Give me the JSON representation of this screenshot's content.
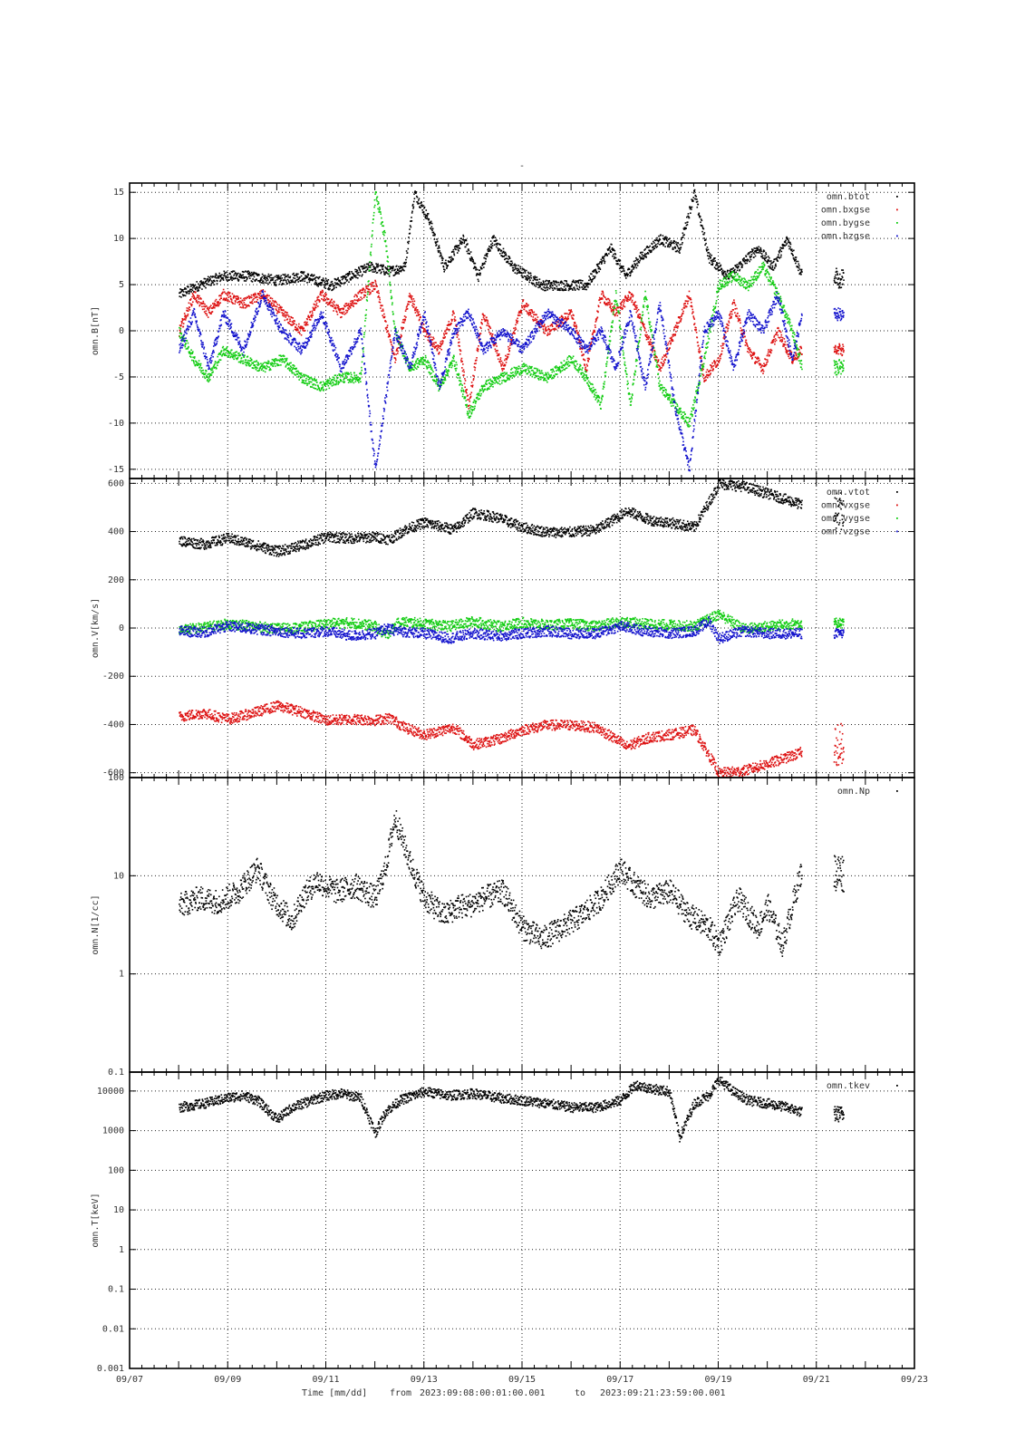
{
  "figure": {
    "top_mark": "-",
    "footer": {
      "time_label": "Time [mm/dd]",
      "from_label": "from",
      "from_value": "2023:09:08:00:01:00.001",
      "to_label": "to",
      "to_value": "2023:09:21:23:59:00.001"
    }
  },
  "chart_data": [
    {
      "type": "scatter",
      "ylabel": "omn.B[nT]",
      "ylim": [
        -16,
        16
      ],
      "yscale": "linear",
      "yticks": [
        -15,
        -10,
        -5,
        0,
        5,
        10,
        15
      ],
      "ytick_labels": [
        "-15",
        "-10",
        "-5",
        "0",
        "5",
        "10",
        "15"
      ],
      "grid": true,
      "legend_position": "top-right",
      "series": [
        {
          "name": "omn.btot",
          "color": "#000000",
          "t": [
            1.0,
            1.4,
            1.9,
            2.4,
            3.0,
            3.5,
            4.1,
            4.5,
            4.9,
            5.3,
            5.6,
            5.8,
            6.1,
            6.4,
            6.8,
            7.1,
            7.4,
            7.8,
            8.4,
            8.9,
            9.3,
            9.8,
            10.1,
            10.4,
            10.8,
            11.2,
            11.5,
            11.8,
            12.2,
            12.8,
            13.1,
            13.4,
            13.7
          ],
          "v": [
            4,
            5,
            6,
            6,
            5.5,
            6,
            5,
            6,
            7,
            6.5,
            7,
            15,
            12,
            7,
            10,
            6,
            10,
            7,
            5,
            5,
            5,
            9,
            6,
            8,
            10,
            9,
            15,
            8,
            6,
            9,
            7,
            10,
            6
          ]
        },
        {
          "name": "omn.bxgse",
          "color": "#dd1111",
          "t": [
            1.0,
            1.3,
            1.6,
            1.9,
            2.3,
            2.7,
            3.1,
            3.5,
            3.9,
            4.3,
            4.7,
            5.0,
            5.4,
            5.7,
            6.0,
            6.3,
            6.6,
            6.9,
            7.2,
            7.6,
            8.0,
            8.5,
            9.0,
            9.3,
            9.6,
            9.9,
            10.2,
            10.5,
            10.8,
            11.1,
            11.4,
            11.7,
            12.0,
            12.3,
            12.6,
            12.9,
            13.2,
            13.5,
            13.7
          ],
          "v": [
            0,
            4,
            2,
            4,
            3,
            4,
            2,
            0,
            4,
            2,
            4,
            5,
            -3,
            4,
            0,
            -2,
            2,
            -8,
            2,
            -4,
            3,
            0,
            2,
            -4,
            4,
            2,
            4,
            0,
            -4,
            0,
            4,
            -5,
            -3,
            3,
            -2,
            -4,
            0,
            -3,
            -2
          ]
        },
        {
          "name": "omn.bygse",
          "color": "#11cc11",
          "t": [
            1.0,
            1.3,
            1.6,
            1.9,
            2.3,
            2.7,
            3.1,
            3.5,
            3.9,
            4.3,
            4.7,
            5.0,
            5.2,
            5.4,
            5.7,
            6.0,
            6.3,
            6.6,
            6.9,
            7.2,
            7.6,
            8.0,
            8.5,
            9.0,
            9.3,
            9.6,
            9.9,
            10.2,
            10.5,
            10.8,
            11.1,
            11.4,
            11.7,
            12.0,
            12.3,
            12.6,
            12.9,
            13.2,
            13.5,
            13.7
          ],
          "v": [
            0,
            -3,
            -5,
            -2,
            -3,
            -4,
            -3,
            -5,
            -6,
            -5,
            -5,
            15,
            10,
            0,
            -4,
            -3,
            -6,
            -3,
            -9,
            -6,
            -5,
            -4,
            -5,
            -3,
            -5,
            -8,
            4,
            -8,
            4,
            -6,
            -8,
            -10,
            -3,
            5,
            6,
            5,
            7,
            4,
            0,
            -4
          ]
        },
        {
          "name": "omn.bzgse",
          "color": "#1111cc",
          "t": [
            1.0,
            1.3,
            1.6,
            1.9,
            2.3,
            2.7,
            3.1,
            3.5,
            3.9,
            4.3,
            4.7,
            5.0,
            5.4,
            5.7,
            6.0,
            6.3,
            6.6,
            6.9,
            7.2,
            7.6,
            8.0,
            8.5,
            9.0,
            9.3,
            9.6,
            9.9,
            10.2,
            10.5,
            10.8,
            11.1,
            11.4,
            11.7,
            12.0,
            12.3,
            12.6,
            12.9,
            13.2,
            13.5,
            13.7
          ],
          "v": [
            -2,
            2,
            -4,
            2,
            -2,
            4,
            0,
            -2,
            2,
            -4,
            0,
            -15,
            0,
            -4,
            2,
            -6,
            0,
            2,
            -2,
            0,
            -2,
            2,
            0,
            -2,
            0,
            -4,
            2,
            -6,
            3,
            -8,
            -15,
            0,
            2,
            -4,
            2,
            0,
            4,
            -3,
            2
          ]
        }
      ],
      "gaps": [
        [
          13.72,
          14.35
        ]
      ],
      "after_gap": [
        {
          "t_start": 14.35,
          "t_end": 14.55
        }
      ]
    },
    {
      "type": "scatter",
      "ylabel": "omn.V[km/s]",
      "ylim": [
        -620,
        620
      ],
      "yscale": "linear",
      "yticks": [
        -600,
        -400,
        -200,
        0,
        200,
        400,
        600
      ],
      "ytick_labels": [
        "-600",
        "-400",
        "-200",
        "0",
        "200",
        "400",
        "600"
      ],
      "grid": true,
      "legend_position": "top-right",
      "series": [
        {
          "name": "omn.vtot",
          "color": "#000000",
          "t": [
            1.0,
            1.5,
            2.0,
            2.5,
            3.0,
            3.5,
            4.0,
            4.5,
            5.0,
            5.3,
            5.6,
            6.0,
            6.6,
            7.0,
            7.5,
            8.0,
            8.5,
            9.0,
            9.5,
            10.0,
            10.1,
            10.6,
            11.0,
            11.5,
            11.9,
            12.0,
            12.5,
            13.0,
            13.6,
            13.7
          ],
          "v": [
            365,
            350,
            375,
            350,
            320,
            345,
            380,
            375,
            380,
            370,
            410,
            440,
            410,
            480,
            460,
            420,
            400,
            400,
            410,
            470,
            490,
            450,
            440,
            420,
            560,
            600,
            590,
            560,
            520,
            510
          ]
        },
        {
          "name": "omn.vxgse",
          "color": "#dd1111",
          "t": [
            1.0,
            1.5,
            2.0,
            2.5,
            3.0,
            3.5,
            4.0,
            4.5,
            5.0,
            5.3,
            5.6,
            6.0,
            6.6,
            7.0,
            7.5,
            8.0,
            8.5,
            9.0,
            9.5,
            10.0,
            10.1,
            10.6,
            11.0,
            11.5,
            11.9,
            12.0,
            12.5,
            13.0,
            13.6,
            13.7
          ],
          "v": [
            -365,
            -350,
            -375,
            -350,
            -320,
            -345,
            -380,
            -375,
            -380,
            -370,
            -410,
            -440,
            -410,
            -480,
            -460,
            -420,
            -400,
            -400,
            -410,
            -470,
            -490,
            -450,
            -440,
            -420,
            -560,
            -600,
            -590,
            -560,
            -520,
            -510
          ]
        },
        {
          "name": "omn.vygse",
          "color": "#11cc11",
          "t": [
            1.0,
            1.5,
            2.0,
            2.5,
            3.0,
            3.5,
            4.0,
            4.5,
            5.0,
            5.2,
            5.5,
            6.0,
            6.5,
            7.0,
            7.5,
            8.0,
            8.5,
            9.0,
            9.5,
            10.0,
            10.5,
            11.0,
            11.5,
            11.8,
            12.0,
            12.5,
            13.0,
            13.5,
            13.7
          ],
          "v": [
            -5,
            5,
            20,
            10,
            0,
            5,
            20,
            25,
            10,
            -30,
            30,
            20,
            10,
            30,
            10,
            25,
            15,
            20,
            10,
            30,
            20,
            15,
            10,
            40,
            60,
            0,
            10,
            20,
            25
          ]
        },
        {
          "name": "omn.vzgse",
          "color": "#1111cc",
          "t": [
            1.0,
            1.5,
            2.0,
            2.5,
            3.0,
            3.5,
            4.0,
            4.5,
            5.0,
            5.2,
            5.5,
            6.0,
            6.5,
            7.0,
            7.5,
            8.0,
            8.5,
            9.0,
            9.5,
            10.0,
            10.5,
            11.0,
            11.5,
            11.8,
            12.0,
            12.5,
            13.0,
            13.5,
            13.7
          ],
          "v": [
            -10,
            -15,
            10,
            0,
            -10,
            -20,
            -10,
            -30,
            -20,
            0,
            -10,
            -20,
            -40,
            -20,
            -30,
            -20,
            -10,
            -20,
            -20,
            10,
            -10,
            -20,
            -10,
            30,
            -40,
            -10,
            -20,
            -20,
            -20
          ]
        }
      ],
      "gaps": [
        [
          13.72,
          14.35
        ]
      ]
    },
    {
      "type": "scatter",
      "ylabel": "omn.N[1/cc]",
      "ylim": [
        0.1,
        100
      ],
      "yscale": "log",
      "yticks": [
        0.1,
        1,
        10,
        100
      ],
      "ytick_labels": [
        "0.1",
        "1",
        "10",
        "100"
      ],
      "grid": true,
      "legend_position": "top-right",
      "series": [
        {
          "name": "omn.Np",
          "color": "#000000",
          "t": [
            1.0,
            1.4,
            1.8,
            2.2,
            2.6,
            2.9,
            3.3,
            3.5,
            3.8,
            4.2,
            4.6,
            5.0,
            5.2,
            5.4,
            5.7,
            6.0,
            6.4,
            6.7,
            6.9,
            7.2,
            7.6,
            8.0,
            8.4,
            8.8,
            9.2,
            9.6,
            10.0,
            10.2,
            10.6,
            11.0,
            11.4,
            11.8,
            12.0,
            12.4,
            12.8,
            13.0,
            13.3,
            13.6,
            13.7
          ],
          "v": [
            5,
            6,
            5.5,
            7,
            12,
            6,
            3.5,
            6,
            9,
            7,
            8,
            6,
            12,
            40,
            14,
            6,
            4,
            5,
            5,
            6,
            7,
            3,
            2.3,
            3,
            4,
            6,
            12,
            9,
            6,
            7,
            4,
            3,
            2,
            6,
            3,
            5,
            2,
            8,
            12
          ]
        }
      ],
      "gaps": [
        [
          13.72,
          14.35
        ]
      ]
    },
    {
      "type": "scatter",
      "ylabel": "omn.T[keV]",
      "ylim": [
        0.001,
        30000
      ],
      "yscale": "log",
      "yticks": [
        0.001,
        0.01,
        0.1,
        1,
        10,
        100,
        1000,
        10000
      ],
      "ytick_labels": [
        "0.001",
        "0.01",
        "0.1",
        "1",
        "10",
        "100",
        "1000",
        "10000"
      ],
      "grid": true,
      "legend_position": "top-right",
      "series": [
        {
          "name": "omn.tkev",
          "color": "#000000",
          "t": [
            1.0,
            1.5,
            2.0,
            2.3,
            2.6,
            3.0,
            3.3,
            3.7,
            4.0,
            4.3,
            4.7,
            5.0,
            5.2,
            5.5,
            6.0,
            6.5,
            7.0,
            7.5,
            8.0,
            8.5,
            9.0,
            9.5,
            10.0,
            10.3,
            10.6,
            11.0,
            11.2,
            11.5,
            11.8,
            12.0,
            12.3,
            12.6,
            13.0,
            13.4,
            13.7
          ],
          "v": [
            4000,
            5000,
            7000,
            8000,
            6000,
            2000,
            4000,
            6000,
            8000,
            9000,
            7000,
            900,
            3000,
            6000,
            10000,
            8000,
            9000,
            7000,
            6000,
            5000,
            4000,
            4000,
            6000,
            15000,
            12000,
            10000,
            700,
            5000,
            8000,
            20000,
            10000,
            6000,
            5000,
            4000,
            3000
          ]
        }
      ],
      "gaps": [
        [
          13.72,
          14.35
        ]
      ]
    }
  ],
  "x_axis": {
    "xlim": [
      0,
      16
    ],
    "tick_values": [
      0,
      2,
      4,
      6,
      8,
      10,
      12,
      14,
      16
    ],
    "tick_labels": [
      "09/07",
      "09/09",
      "09/11",
      "09/13",
      "09/15",
      "09/17",
      "09/19",
      "09/21",
      "09/23"
    ]
  }
}
